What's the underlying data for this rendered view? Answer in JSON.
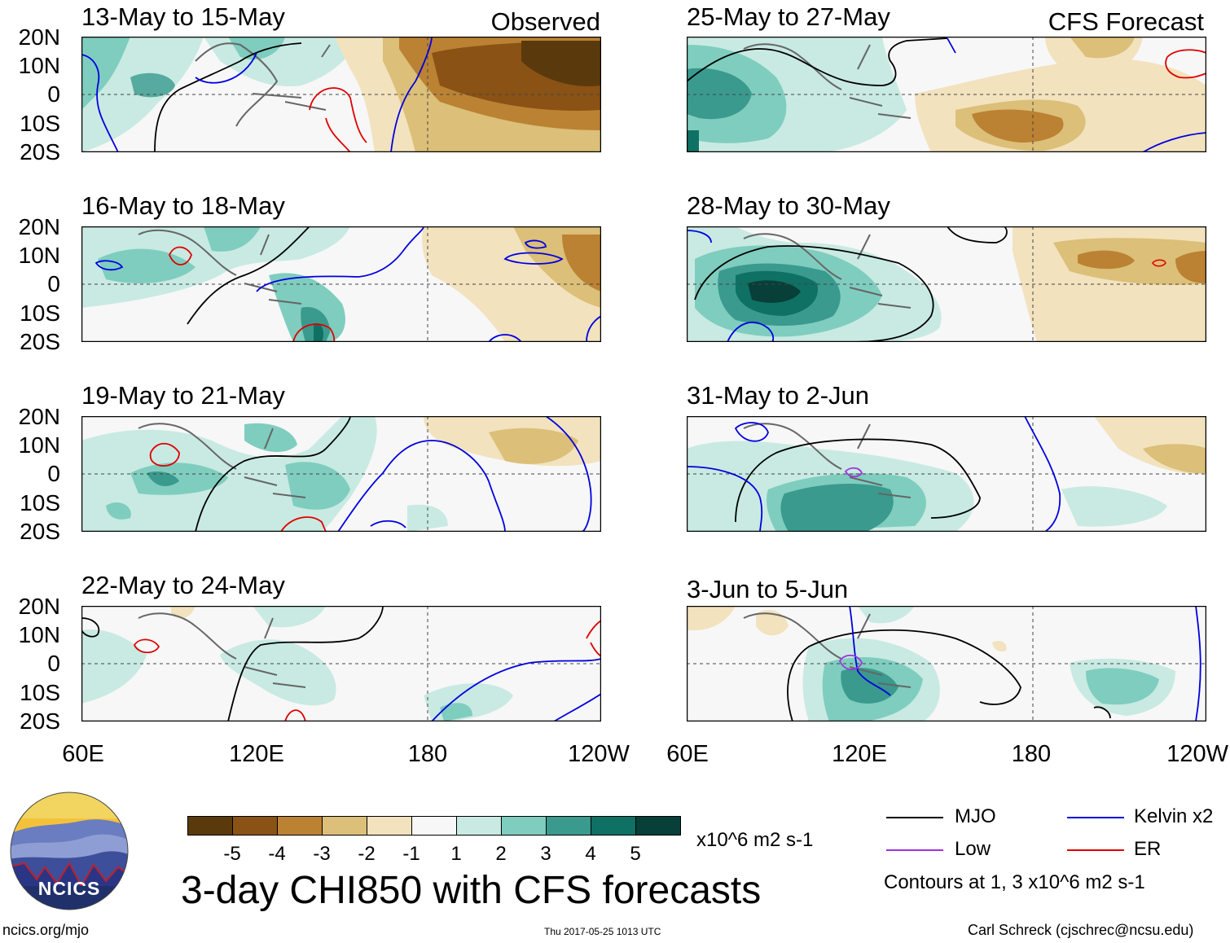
{
  "left_panels": [
    {
      "title": "13-May to 15-May",
      "tag": "Observed"
    },
    {
      "title": "16-May to 18-May",
      "tag": ""
    },
    {
      "title": "19-May to 21-May",
      "tag": ""
    },
    {
      "title": "22-May to 24-May",
      "tag": ""
    }
  ],
  "right_panels": [
    {
      "title": "25-May to 27-May",
      "tag": "CFS Forecast"
    },
    {
      "title": "28-May to 30-May",
      "tag": ""
    },
    {
      "title": "31-May to 2-Jun",
      "tag": ""
    },
    {
      "title": "3-Jun to 5-Jun",
      "tag": ""
    }
  ],
  "lat_labels": [
    "20N",
    "10N",
    "0",
    "10S",
    "20S"
  ],
  "lon_labels": [
    "60E",
    "120E",
    "180",
    "120W"
  ],
  "colorbar": {
    "colors": [
      "#5a3a0d",
      "#8a5214",
      "#bb8233",
      "#dcbf78",
      "#f2e2be",
      "#f7f7f7",
      "#c8eae2",
      "#7fcdbf",
      "#3a9a8e",
      "#0e7164",
      "#083f38"
    ],
    "labels": [
      "-5",
      "-4",
      "-3",
      "-2",
      "-1",
      "1",
      "2",
      "3",
      "4",
      "5"
    ],
    "units": "x10^6 m2 s-1"
  },
  "main_title": "3-day CHI850 with CFS forecasts",
  "legend": {
    "items": [
      {
        "label": "MJO",
        "color": "#000000"
      },
      {
        "label": "Kelvin x2",
        "color": "#0000e0"
      },
      {
        "label": "Low",
        "color": "#a030e0"
      },
      {
        "label": "ER",
        "color": "#e00000"
      }
    ],
    "contours_note": "Contours at 1, 3 x10^6 m2 s-1"
  },
  "logo": {
    "text": "NCICS"
  },
  "footer": {
    "url": "ncics.org/mjo",
    "timestamp": "Thu 2017-05-25 1013 UTC",
    "author": "Carl Schreck (cjschrec@ncsu.edu)"
  }
}
